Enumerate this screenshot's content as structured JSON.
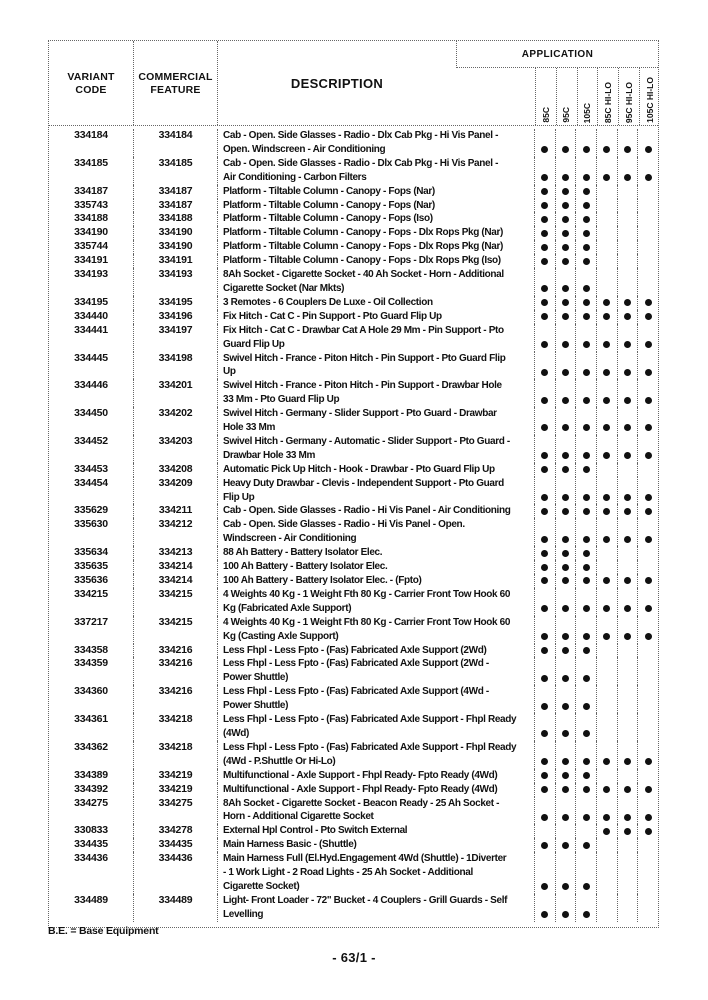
{
  "colors": {
    "ink": "#111111",
    "dot": "#111111",
    "rule": "#666666"
  },
  "header": {
    "variant_code_line1": "VARIANT",
    "variant_code_line2": "CODE",
    "commercial_feature_line1": "COMMERCIAL",
    "commercial_feature_line2": "FEATURE",
    "description": "DESCRIPTION",
    "application": "APPLICATION",
    "app_columns": [
      "85C",
      "95C",
      "105C",
      "85C HI-LO",
      "95C HI-LO",
      "105C HI-LO"
    ]
  },
  "rows": [
    {
      "variant_code": "334184",
      "commercial_feature": "334184",
      "description_lines": [
        "Cab - Open. Side Glasses  - Radio - Dlx Cab Pkg - Hi Vis Panel -",
        "Open. Windscreen - Air Conditioning"
      ],
      "applications": [
        1,
        1,
        1,
        1,
        1,
        1
      ]
    },
    {
      "variant_code": "334185",
      "commercial_feature": "334185",
      "description_lines": [
        "Cab - Open. Side Glasses - Radio - Dlx Cab Pkg - Hi Vis Panel -",
        "Air Conditioning - Carbon Filters"
      ],
      "applications": [
        1,
        1,
        1,
        1,
        1,
        1
      ]
    },
    {
      "variant_code": "334187",
      "commercial_feature": "334187",
      "description_lines": [
        "Platform  - Tiltable Column - Canopy - Fops (Nar)"
      ],
      "applications": [
        1,
        1,
        1,
        0,
        0,
        0
      ]
    },
    {
      "variant_code": "335743",
      "commercial_feature": "334187",
      "description_lines": [
        "Platform  - Tiltable Column - Canopy - Fops (Nar)"
      ],
      "applications": [
        1,
        1,
        1,
        0,
        0,
        0
      ]
    },
    {
      "variant_code": "334188",
      "commercial_feature": "334188",
      "description_lines": [
        "Platform  - Tiltable Column - Canopy - Fops (Iso)"
      ],
      "applications": [
        1,
        1,
        1,
        0,
        0,
        0
      ]
    },
    {
      "variant_code": "334190",
      "commercial_feature": "334190",
      "description_lines": [
        "Platform  - Tiltable Column  - Canopy - Fops - Dlx Rops Pkg (Nar)"
      ],
      "applications": [
        1,
        1,
        1,
        0,
        0,
        0
      ]
    },
    {
      "variant_code": "335744",
      "commercial_feature": "334190",
      "description_lines": [
        "Platform  - Tiltable Column  - Canopy - Fops - Dlx Rops Pkg (Nar)"
      ],
      "applications": [
        1,
        1,
        1,
        0,
        0,
        0
      ]
    },
    {
      "variant_code": "334191",
      "commercial_feature": "334191",
      "description_lines": [
        "Platform   - Tiltable Column - Canopy - Fops - Dlx Rops Pkg (Iso)"
      ],
      "applications": [
        1,
        1,
        1,
        0,
        0,
        0
      ]
    },
    {
      "variant_code": "334193",
      "commercial_feature": "334193",
      "description_lines": [
        "8Ah Socket - Cigarette Socket - 40 Ah Socket - Horn  - Additional",
        "Cigarette Socket  (Nar Mkts)"
      ],
      "applications": [
        1,
        1,
        1,
        0,
        0,
        0
      ]
    },
    {
      "variant_code": "334195",
      "commercial_feature": "334195",
      "description_lines": [
        "3  Remotes - 6 Couplers De Luxe - Oil Collection"
      ],
      "applications": [
        1,
        1,
        1,
        1,
        1,
        1
      ]
    },
    {
      "variant_code": "334440",
      "commercial_feature": "334196",
      "description_lines": [
        "Fix Hitch - Cat C - Pin Support - Pto Guard Flip Up"
      ],
      "applications": [
        1,
        1,
        1,
        1,
        1,
        1
      ]
    },
    {
      "variant_code": "334441",
      "commercial_feature": "334197",
      "description_lines": [
        "Fix Hitch - Cat C - Drawbar Cat A Hole 29 Mm - Pin Support - Pto",
        "Guard Flip Up"
      ],
      "applications": [
        1,
        1,
        1,
        1,
        1,
        1
      ]
    },
    {
      "variant_code": "334445",
      "commercial_feature": "334198",
      "description_lines": [
        "Swivel Hitch - France - Piton Hitch - Pin Support - Pto Guard Flip",
        "Up"
      ],
      "applications": [
        1,
        1,
        1,
        1,
        1,
        1
      ]
    },
    {
      "variant_code": "334446",
      "commercial_feature": "334201",
      "description_lines": [
        "Swivel Hitch - France - Piton Hitch - Pin Support - Drawbar Hole",
        "33 Mm - Pto Guard Flip Up"
      ],
      "applications": [
        1,
        1,
        1,
        1,
        1,
        1
      ]
    },
    {
      "variant_code": "334450",
      "commercial_feature": "334202",
      "description_lines": [
        "Swivel Hitch - Germany - Slider Support - Pto Guard - Drawbar",
        "Hole 33 Mm"
      ],
      "applications": [
        1,
        1,
        1,
        1,
        1,
        1
      ]
    },
    {
      "variant_code": "334452",
      "commercial_feature": "334203",
      "description_lines": [
        "Swivel Hitch - Germany - Automatic - Slider Support - Pto Guard -",
        "Drawbar Hole 33 Mm"
      ],
      "applications": [
        1,
        1,
        1,
        1,
        1,
        1
      ]
    },
    {
      "variant_code": "334453",
      "commercial_feature": "334208",
      "description_lines": [
        "Automatic Pick Up Hitch - Hook - Drawbar - Pto Guard Flip Up"
      ],
      "applications": [
        1,
        1,
        1,
        0,
        0,
        0
      ]
    },
    {
      "variant_code": "334454",
      "commercial_feature": "334209",
      "description_lines": [
        "Heavy Duty Drawbar - Clevis - Independent Support - Pto Guard",
        "Flip Up"
      ],
      "applications": [
        1,
        1,
        1,
        1,
        1,
        1
      ]
    },
    {
      "variant_code": "335629",
      "commercial_feature": "334211",
      "description_lines": [
        "Cab - Open. Side Glasses - Radio - Hi Vis Panel - Air Conditioning"
      ],
      "applications": [
        1,
        1,
        1,
        1,
        1,
        1
      ]
    },
    {
      "variant_code": "335630",
      "commercial_feature": "334212",
      "description_lines": [
        "Cab - Open. Side Glasses - Radio - Hi Vis Panel - Open.",
        "Windscreen - Air Conditioning"
      ],
      "applications": [
        1,
        1,
        1,
        1,
        1,
        1
      ]
    },
    {
      "variant_code": "335634",
      "commercial_feature": "334213",
      "description_lines": [
        "88 Ah Battery - Battery Isolator Elec."
      ],
      "applications": [
        1,
        1,
        1,
        0,
        0,
        0
      ]
    },
    {
      "variant_code": "335635",
      "commercial_feature": "334214",
      "description_lines": [
        "100 Ah Battery - Battery Isolator Elec."
      ],
      "applications": [
        1,
        1,
        1,
        0,
        0,
        0
      ]
    },
    {
      "variant_code": "335636",
      "commercial_feature": "334214",
      "description_lines": [
        "100 Ah Battery - Battery Isolator Elec. - (Fpto)"
      ],
      "applications": [
        1,
        1,
        1,
        1,
        1,
        1
      ]
    },
    {
      "variant_code": "334215",
      "commercial_feature": "334215",
      "description_lines": [
        "4 Weights 40 Kg - 1 Weight Fth 80 Kg - Carrier Front Tow Hook 60",
        "Kg (Fabricated Axle Support)"
      ],
      "applications": [
        1,
        1,
        1,
        1,
        1,
        1
      ]
    },
    {
      "variant_code": "337217",
      "commercial_feature": "334215",
      "description_lines": [
        "4 Weights 40 Kg - 1 Weight Fth 80 Kg - Carrier Front Tow Hook 60",
        "Kg (Casting Axle Support)"
      ],
      "applications": [
        1,
        1,
        1,
        1,
        1,
        1
      ]
    },
    {
      "variant_code": "334358",
      "commercial_feature": "334216",
      "description_lines": [
        "Less Fhpl - Less Fpto - (Fas) Fabricated Axle Support (2Wd)"
      ],
      "applications": [
        1,
        1,
        1,
        0,
        0,
        0
      ]
    },
    {
      "variant_code": "334359",
      "commercial_feature": "334216",
      "description_lines": [
        "Less Fhpl - Less Fpto - (Fas) Fabricated Axle Support (2Wd -",
        "Power Shuttle)"
      ],
      "applications": [
        1,
        1,
        1,
        0,
        0,
        0
      ]
    },
    {
      "variant_code": "334360",
      "commercial_feature": "334216",
      "description_lines": [
        "Less Fhpl - Less Fpto - (Fas) Fabricated Axle Support (4Wd -",
        "Power Shuttle)"
      ],
      "applications": [
        1,
        1,
        1,
        0,
        0,
        0
      ]
    },
    {
      "variant_code": "334361",
      "commercial_feature": "334218",
      "description_lines": [
        "Less Fhpl - Less Fpto - (Fas) Fabricated Axle Support - Fhpl Ready",
        "(4Wd)"
      ],
      "applications": [
        1,
        1,
        1,
        0,
        0,
        0
      ]
    },
    {
      "variant_code": "334362",
      "commercial_feature": "334218",
      "description_lines": [
        "Less Fhpl - Less Fpto - (Fas) Fabricated Axle Support - Fhpl Ready",
        "(4Wd - P.Shuttle Or Hi-Lo)"
      ],
      "applications": [
        1,
        1,
        1,
        1,
        1,
        1
      ]
    },
    {
      "variant_code": "334389",
      "commercial_feature": "334219",
      "description_lines": [
        "Multifunctional - Axle Support - Fhpl Ready- Fpto Ready (4Wd)"
      ],
      "applications": [
        1,
        1,
        1,
        0,
        0,
        0
      ]
    },
    {
      "variant_code": "334392",
      "commercial_feature": "334219",
      "description_lines": [
        "Multifunctional - Axle Support - Fhpl Ready- Fpto Ready (4Wd)"
      ],
      "applications": [
        1,
        1,
        1,
        1,
        1,
        1
      ]
    },
    {
      "variant_code": "334275",
      "commercial_feature": "334275",
      "description_lines": [
        "8Ah Socket - Cigarette Socket - Beacon Ready - 25 Ah Socket -",
        "Horn - Additional Cigarette Socket"
      ],
      "applications": [
        1,
        1,
        1,
        1,
        1,
        1
      ]
    },
    {
      "variant_code": "330833",
      "commercial_feature": "334278",
      "description_lines": [
        "External Hpl Control - Pto Switch External"
      ],
      "applications": [
        0,
        0,
        0,
        1,
        1,
        1
      ]
    },
    {
      "variant_code": "334435",
      "commercial_feature": "334435",
      "description_lines": [
        "Main Harness Basic - (Shuttle)"
      ],
      "applications": [
        1,
        1,
        1,
        0,
        0,
        0
      ]
    },
    {
      "variant_code": "334436",
      "commercial_feature": "334436",
      "description_lines": [
        "Main Harness Full (El.Hyd.Engagement 4Wd (Shuttle) - 1Diverter",
        "- 1 Work Light - 2 Road Lights - 25 Ah Socket - Additional",
        "Cigarette Socket)"
      ],
      "applications": [
        1,
        1,
        1,
        0,
        0,
        0
      ]
    },
    {
      "variant_code": "334489",
      "commercial_feature": "334489",
      "description_lines": [
        "Light- Front Loader - 72\" Bucket - 4 Couplers - Grill Guards - Self",
        "Levelling"
      ],
      "applications": [
        1,
        1,
        1,
        0,
        0,
        0
      ]
    }
  ],
  "footer": {
    "note": "B.E. = Base Equipment",
    "page_number": "- 63/1 -"
  }
}
